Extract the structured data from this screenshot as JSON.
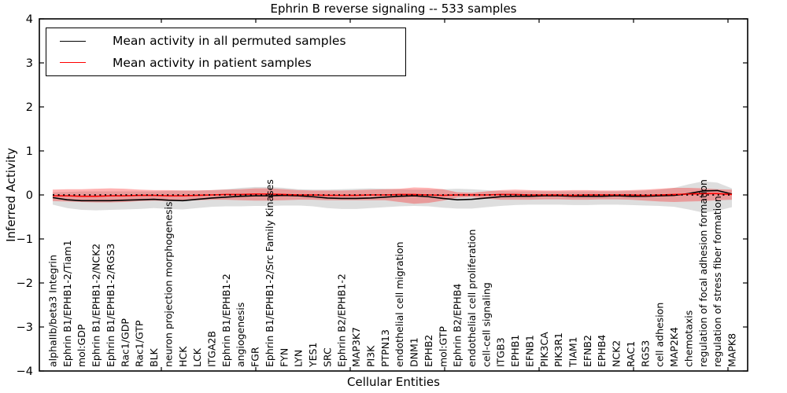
{
  "title": "Ephrin B reverse signaling -- 533 samples",
  "axes": {
    "xlabel": "Cellular Entities",
    "ylabel": "Inferred Activity"
  },
  "legend": {
    "items": [
      {
        "label": "Mean activity in all permuted samples",
        "color": "#000000"
      },
      {
        "label": "Mean activity in patient samples",
        "color": "#ff0000"
      }
    ]
  },
  "chart_data": {
    "type": "line",
    "title": "Ephrin B reverse signaling -- 533 samples",
    "xlabel": "Cellular Entities",
    "ylabel": "Inferred Activity",
    "ylim": [
      -4,
      4
    ],
    "yticks": [
      4,
      3,
      2,
      1,
      0,
      -1,
      -2,
      -3,
      -4
    ],
    "grid": false,
    "legend_position": "upper left",
    "zero_reference_line": {
      "y": 0,
      "style": "dotted",
      "color": "#000000"
    },
    "categories": [
      "alphaIIb/beta3 Integrin",
      "Ephrin B1/EPHB1-2/Tiam1",
      "mol:GDP",
      "Ephrin B1/EPHB1-2/NCK2",
      "Ephrin B1/EPHB1-2/RGS3",
      "Rac1/GDP",
      "Rac1/GTP",
      "BLK",
      "neuron projection morphogenesis",
      "HCK",
      "LCK",
      "ITGA2B",
      "Ephrin B1/EPHB1-2",
      "angiogenesis",
      "FGR",
      "Ephrin B1/EPHB1-2/Src Family Kinases",
      "FYN",
      "LYN",
      "YES1",
      "SRC",
      "Ephrin B2/EPHB1-2",
      "MAP3K7",
      "PI3K",
      "PTPN13",
      "endothelial cell migration",
      "DNM1",
      "EPHB2",
      "mol:GTP",
      "Ephrin B2/EPHB4",
      "endothelial cell proliferation",
      "cell-cell signaling",
      "ITGB3",
      "EPHB1",
      "EFNB1",
      "PIK3CA",
      "PIK3R1",
      "TIAM1",
      "EFNB2",
      "EPHB4",
      "NCK2",
      "RAC1",
      "RGS3",
      "cell adhesion",
      "MAP2K4",
      "chemotaxis",
      "regulation of focal adhesion formation",
      "regulation of stress fiber formation",
      "MAPK8"
    ],
    "series": [
      {
        "name": "Mean activity in all permuted samples",
        "color": "#000000",
        "values": [
          -0.06,
          -0.11,
          -0.13,
          -0.13,
          -0.13,
          -0.12,
          -0.11,
          -0.1,
          -0.12,
          -0.13,
          -0.1,
          -0.07,
          -0.05,
          -0.03,
          -0.02,
          -0.02,
          -0.01,
          -0.02,
          -0.04,
          -0.07,
          -0.08,
          -0.08,
          -0.07,
          -0.05,
          -0.03,
          -0.02,
          -0.04,
          -0.08,
          -0.11,
          -0.1,
          -0.07,
          -0.04,
          -0.03,
          -0.03,
          -0.02,
          -0.02,
          -0.03,
          -0.03,
          -0.03,
          -0.02,
          -0.03,
          -0.03,
          -0.02,
          -0.01,
          0.03,
          0.09,
          0.1,
          0.02
        ],
        "band": {
          "color": "#000000",
          "opacity": 0.13,
          "top": [
            0.06,
            0.07,
            0.08,
            0.08,
            0.08,
            0.08,
            0.08,
            0.08,
            0.09,
            0.1,
            0.1,
            0.11,
            0.13,
            0.16,
            0.18,
            0.18,
            0.16,
            0.13,
            0.12,
            0.12,
            0.13,
            0.14,
            0.15,
            0.14,
            0.13,
            0.12,
            0.12,
            0.13,
            0.14,
            0.13,
            0.11,
            0.09,
            0.08,
            0.08,
            0.08,
            0.08,
            0.08,
            0.08,
            0.08,
            0.08,
            0.09,
            0.1,
            0.12,
            0.16,
            0.24,
            0.31,
            0.28,
            0.15
          ],
          "bottom": [
            -0.22,
            -0.3,
            -0.34,
            -0.35,
            -0.34,
            -0.33,
            -0.32,
            -0.3,
            -0.32,
            -0.33,
            -0.3,
            -0.27,
            -0.26,
            -0.26,
            -0.25,
            -0.25,
            -0.24,
            -0.24,
            -0.26,
            -0.3,
            -0.32,
            -0.32,
            -0.3,
            -0.28,
            -0.26,
            -0.25,
            -0.26,
            -0.29,
            -0.31,
            -0.31,
            -0.28,
            -0.25,
            -0.23,
            -0.22,
            -0.22,
            -0.22,
            -0.23,
            -0.23,
            -0.22,
            -0.22,
            -0.23,
            -0.24,
            -0.25,
            -0.27,
            -0.33,
            -0.4,
            -0.36,
            -0.28
          ]
        }
      },
      {
        "name": "Mean activity in patient samples",
        "color": "#ff0000",
        "values": [
          -0.02,
          -0.02,
          -0.03,
          -0.03,
          -0.02,
          -0.02,
          -0.01,
          -0.01,
          -0.02,
          -0.02,
          -0.01,
          0.0,
          0.01,
          0.01,
          0.02,
          0.02,
          0.01,
          0.0,
          0.0,
          -0.01,
          -0.01,
          -0.01,
          0.0,
          0.0,
          0.01,
          0.01,
          0.0,
          -0.01,
          0.0,
          0.0,
          0.0,
          0.01,
          0.01,
          0.0,
          0.0,
          0.0,
          -0.01,
          0.0,
          0.0,
          0.0,
          0.0,
          -0.01,
          0.0,
          0.01,
          0.02,
          0.03,
          0.03,
          0.01
        ],
        "band": {
          "color": "#ff0000",
          "opacity": 0.3,
          "top": [
            0.12,
            0.13,
            0.13,
            0.14,
            0.15,
            0.14,
            0.12,
            0.11,
            0.11,
            0.1,
            0.1,
            0.11,
            0.12,
            0.13,
            0.15,
            0.15,
            0.13,
            0.11,
            0.1,
            0.1,
            0.1,
            0.11,
            0.12,
            0.13,
            0.14,
            0.17,
            0.16,
            0.13,
            0.06,
            0.05,
            0.08,
            0.11,
            0.12,
            0.11,
            0.1,
            0.1,
            0.11,
            0.11,
            0.1,
            0.1,
            0.11,
            0.12,
            0.14,
            0.16,
            0.16,
            0.15,
            0.13,
            0.12
          ],
          "bottom": [
            -0.14,
            -0.15,
            -0.16,
            -0.17,
            -0.17,
            -0.16,
            -0.14,
            -0.13,
            -0.14,
            -0.14,
            -0.12,
            -0.11,
            -0.11,
            -0.12,
            -0.13,
            -0.13,
            -0.12,
            -0.11,
            -0.11,
            -0.12,
            -0.12,
            -0.12,
            -0.12,
            -0.12,
            -0.16,
            -0.2,
            -0.18,
            -0.13,
            -0.06,
            -0.05,
            -0.08,
            -0.11,
            -0.11,
            -0.11,
            -0.1,
            -0.1,
            -0.11,
            -0.11,
            -0.1,
            -0.1,
            -0.11,
            -0.13,
            -0.15,
            -0.16,
            -0.15,
            -0.14,
            -0.12,
            -0.11
          ]
        }
      }
    ]
  }
}
